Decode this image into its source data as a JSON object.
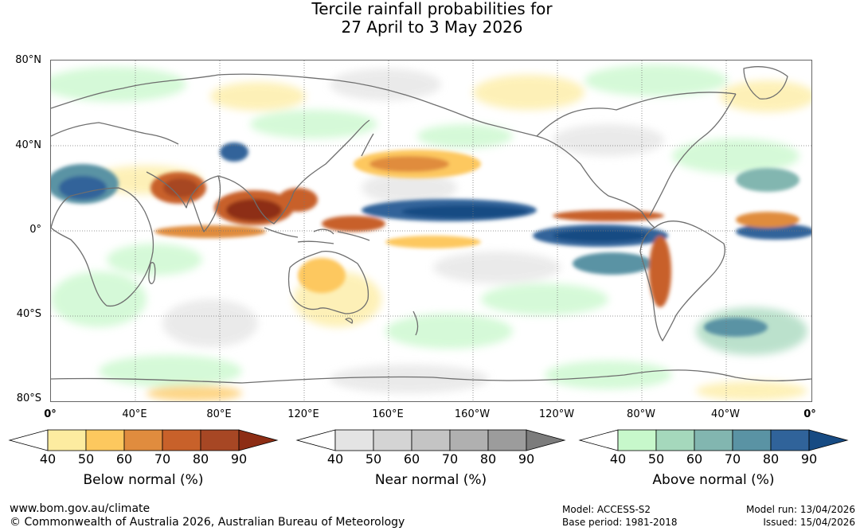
{
  "title": {
    "line1": "Tercile rainfall probabilities for",
    "line2": "27 April to 3 May 2026"
  },
  "map": {
    "lat_labels": [
      "80°N",
      "40°N",
      "0°",
      "40°S",
      "80°S"
    ],
    "lon_labels": [
      "0°",
      "40°E",
      "80°E",
      "120°E",
      "160°E",
      "160°W",
      "120°W",
      "80°W",
      "40°W",
      "0°"
    ],
    "colors": {
      "coastline": "#6e6e6e",
      "gridline": "#777777"
    }
  },
  "legends": [
    {
      "id": "below",
      "title": "Below normal (%)",
      "ticks": [
        "40",
        "50",
        "60",
        "70",
        "80",
        "90"
      ],
      "colors": [
        "#ffffff",
        "#fdeca0",
        "#fdc85e",
        "#e08c3e",
        "#c8612a",
        "#a74724",
        "#8d2d14"
      ]
    },
    {
      "id": "near",
      "title": "Near normal (%)",
      "ticks": [
        "40",
        "50",
        "60",
        "70",
        "80",
        "90"
      ],
      "colors": [
        "#ffffff",
        "#e4e4e4",
        "#d4d4d4",
        "#c4c4c4",
        "#b0b0b0",
        "#9c9c9c",
        "#7c7c7c"
      ]
    },
    {
      "id": "above",
      "title": "Above normal (%)",
      "ticks": [
        "40",
        "50",
        "60",
        "70",
        "80",
        "90"
      ],
      "colors": [
        "#ffffff",
        "#c7f8cb",
        "#a5d8bc",
        "#82b6b0",
        "#5a93a4",
        "#30639a",
        "#174b83"
      ]
    }
  ],
  "footer": {
    "website": "www.bom.gov.au/climate",
    "copyright": "© Commonwealth of Australia 2026, Australian Bureau of Meteorology",
    "model": "Model: ACCESS-S2",
    "base_period": "Base period: 1981-2018",
    "model_run": "Model run: 13/04/2026",
    "issued": "Issued: 15/04/2026"
  }
}
